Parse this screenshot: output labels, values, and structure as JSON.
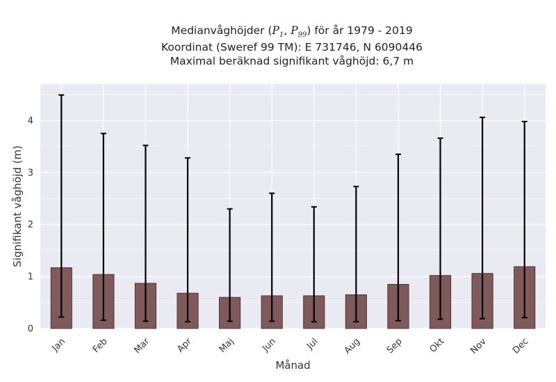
{
  "chart_data": {
    "type": "bar",
    "title_prefix": "Medianvåghöjder (",
    "title_p_low": "P",
    "title_p_low_sub": "1",
    "title_sep": ", ",
    "title_p_high": "P",
    "title_p_high_sub": "99",
    "title_suffix": ") för år 1979 - 2019",
    "subtitle_1": "Koordinat (Sweref 99 TM): E 731746, N 6090446",
    "subtitle_2": "Maximal beräknad signifikant våghöjd: 6,7 m",
    "xlabel": "Månad",
    "ylabel": "Signifikant våghöjd (m)",
    "ylim": [
      0,
      4.7
    ],
    "yticks": [
      0,
      1,
      2,
      3,
      4
    ],
    "grid": true,
    "categories": [
      "Jan",
      "Feb",
      "Mar",
      "Apr",
      "Maj",
      "Jun",
      "Jul",
      "Aug",
      "Sep",
      "Okt",
      "Nov",
      "Dec"
    ],
    "values": [
      1.17,
      1.04,
      0.87,
      0.68,
      0.6,
      0.63,
      0.63,
      0.65,
      0.85,
      1.02,
      1.06,
      1.19
    ],
    "p1": [
      0.22,
      0.16,
      0.14,
      0.13,
      0.14,
      0.14,
      0.13,
      0.13,
      0.15,
      0.18,
      0.19,
      0.21
    ],
    "p99": [
      4.49,
      3.75,
      3.52,
      3.28,
      2.3,
      2.6,
      2.34,
      2.73,
      3.35,
      3.66,
      4.06,
      3.98
    ],
    "colors": {
      "bar": "#7e5a5a",
      "bar_edge": "#3b2626",
      "errorbar": "#000000",
      "plot_bg": "#eaeaf2",
      "grid": "#ffffff"
    }
  }
}
